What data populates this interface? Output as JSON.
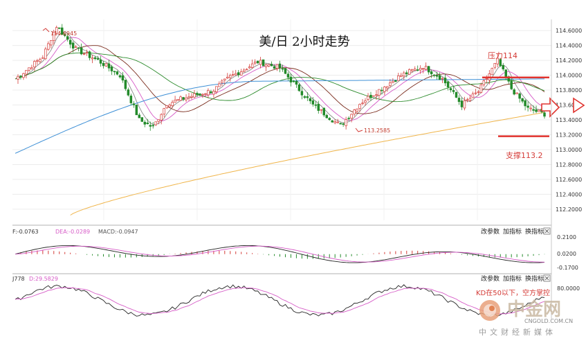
{
  "chart_data": [
    {
      "type": "candlestick",
      "title": "美/日 2小时走势",
      "y_ticks": [
        "114.6000",
        "114.4000",
        "114.2000",
        "114.0000",
        "113.8000",
        "113.6000",
        "113.4000",
        "113.2000",
        "113.0000",
        "112.8000",
        "112.6000",
        "112.4000",
        "112.2000"
      ],
      "ylim": [
        112.05,
        114.75
      ],
      "grid": true,
      "annotations": {
        "high_label": "114.6945",
        "low_label": "113.2585",
        "resistance_label": "压力114",
        "support_label": "支撑113.2",
        "resistance_value": 113.97,
        "support_value": 113.18
      },
      "colors": {
        "up": "#d43a36",
        "down": "#238a2a",
        "ma_long": "#f0b54a",
        "ma_mid": "#3d8fd6",
        "ma_green": "#2a8a2a",
        "ma_brown": "#7a2b1c",
        "ma_pink": "#d65bc7",
        "ma_gray": "#888888"
      }
    },
    {
      "type": "macd",
      "legend_dif": "F:-0.0763",
      "legend_dea": "DEA:-0.0289",
      "legend_macd": "MACD:-0.0947",
      "y_ticks": [
        "0.2100",
        "0.0200",
        "-0.1700"
      ],
      "ylim": [
        -0.2,
        0.23
      ],
      "buttons": [
        "改参数",
        "加指标",
        "换指标"
      ]
    },
    {
      "type": "kdj",
      "legend_k": "J778",
      "legend_d": "D:29.5829",
      "y_ticks": [
        "80.0000"
      ],
      "ylim": [
        0,
        100
      ],
      "annotation": "KD在50以下，空方掌控",
      "buttons": [
        "改参数",
        "加指标",
        "换指标"
      ]
    }
  ],
  "watermark": {
    "name": "中金网",
    "url": "CNGOLD.COM.CN",
    "sub": "中文财经新媒体"
  }
}
